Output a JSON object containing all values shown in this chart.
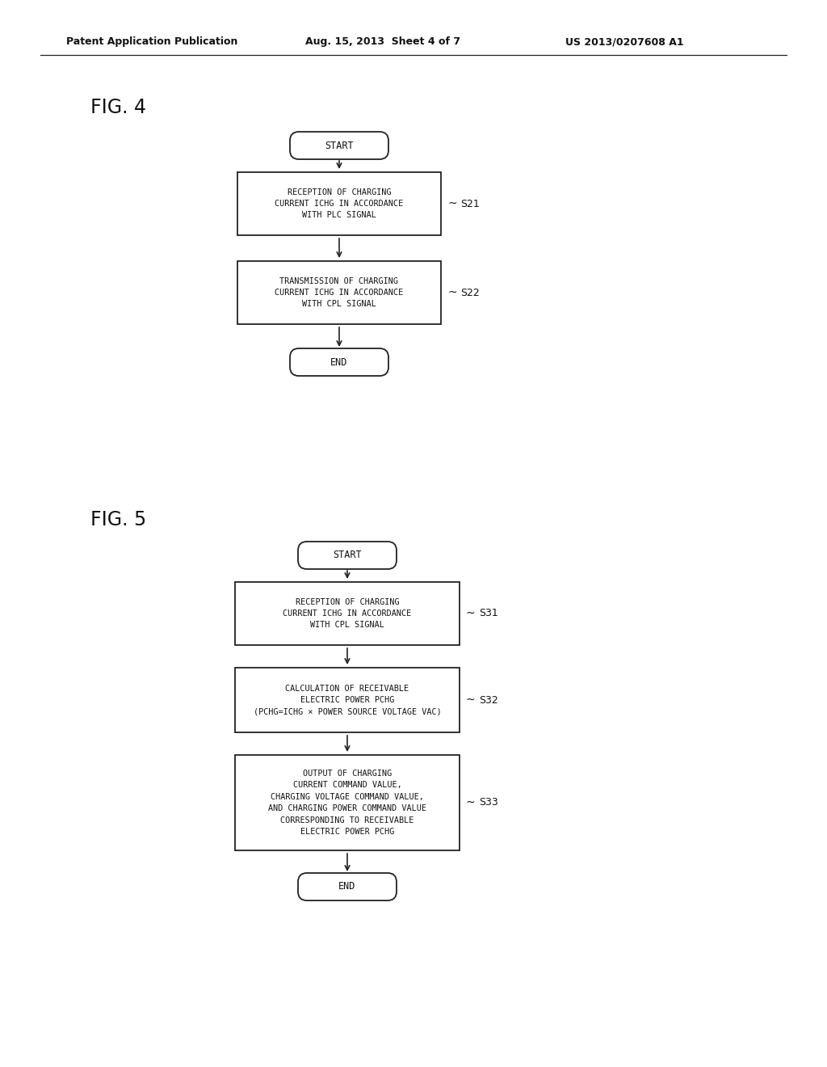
{
  "bg_color": "#ffffff",
  "header_left": "Patent Application Publication",
  "header_mid": "Aug. 15, 2013  Sheet 4 of 7",
  "header_right": "US 2013/0207608 A1",
  "fig4_label": "FIG. 4",
  "fig5_label": "FIG. 5",
  "line_color": "#222222",
  "text_color": "#111111",
  "fig4": {
    "start_text": "START",
    "nodes": [
      {
        "text": "RECEPTION OF CHARGING\nCURRENT ICHG IN ACCORDANCE\nWITH PLC SIGNAL",
        "label": "S21"
      },
      {
        "text": "TRANSMISSION OF CHARGING\nCURRENT ICHG IN ACCORDANCE\nWITH CPL SIGNAL",
        "label": "S22"
      }
    ],
    "end_text": "END"
  },
  "fig5": {
    "start_text": "START",
    "nodes": [
      {
        "text": "RECEPTION OF CHARGING\nCURRENT ICHG IN ACCORDANCE\nWITH CPL SIGNAL",
        "label": "S31"
      },
      {
        "text": "CALCULATION OF RECEIVABLE\nELECTRIC POWER PCHG\n(PCHG=ICHG × POWER SOURCE VOLTAGE VAC)",
        "label": "S32"
      },
      {
        "text": "OUTPUT OF CHARGING\nCURRENT COMMAND VALUE,\nCHARGING VOLTAGE COMMAND VALUE,\nAND CHARGING POWER COMMAND VALUE\nCORRESPONDING TO RECEIVABLE\nELECTRIC POWER PCHG",
        "label": "S33"
      }
    ],
    "end_text": "END"
  }
}
